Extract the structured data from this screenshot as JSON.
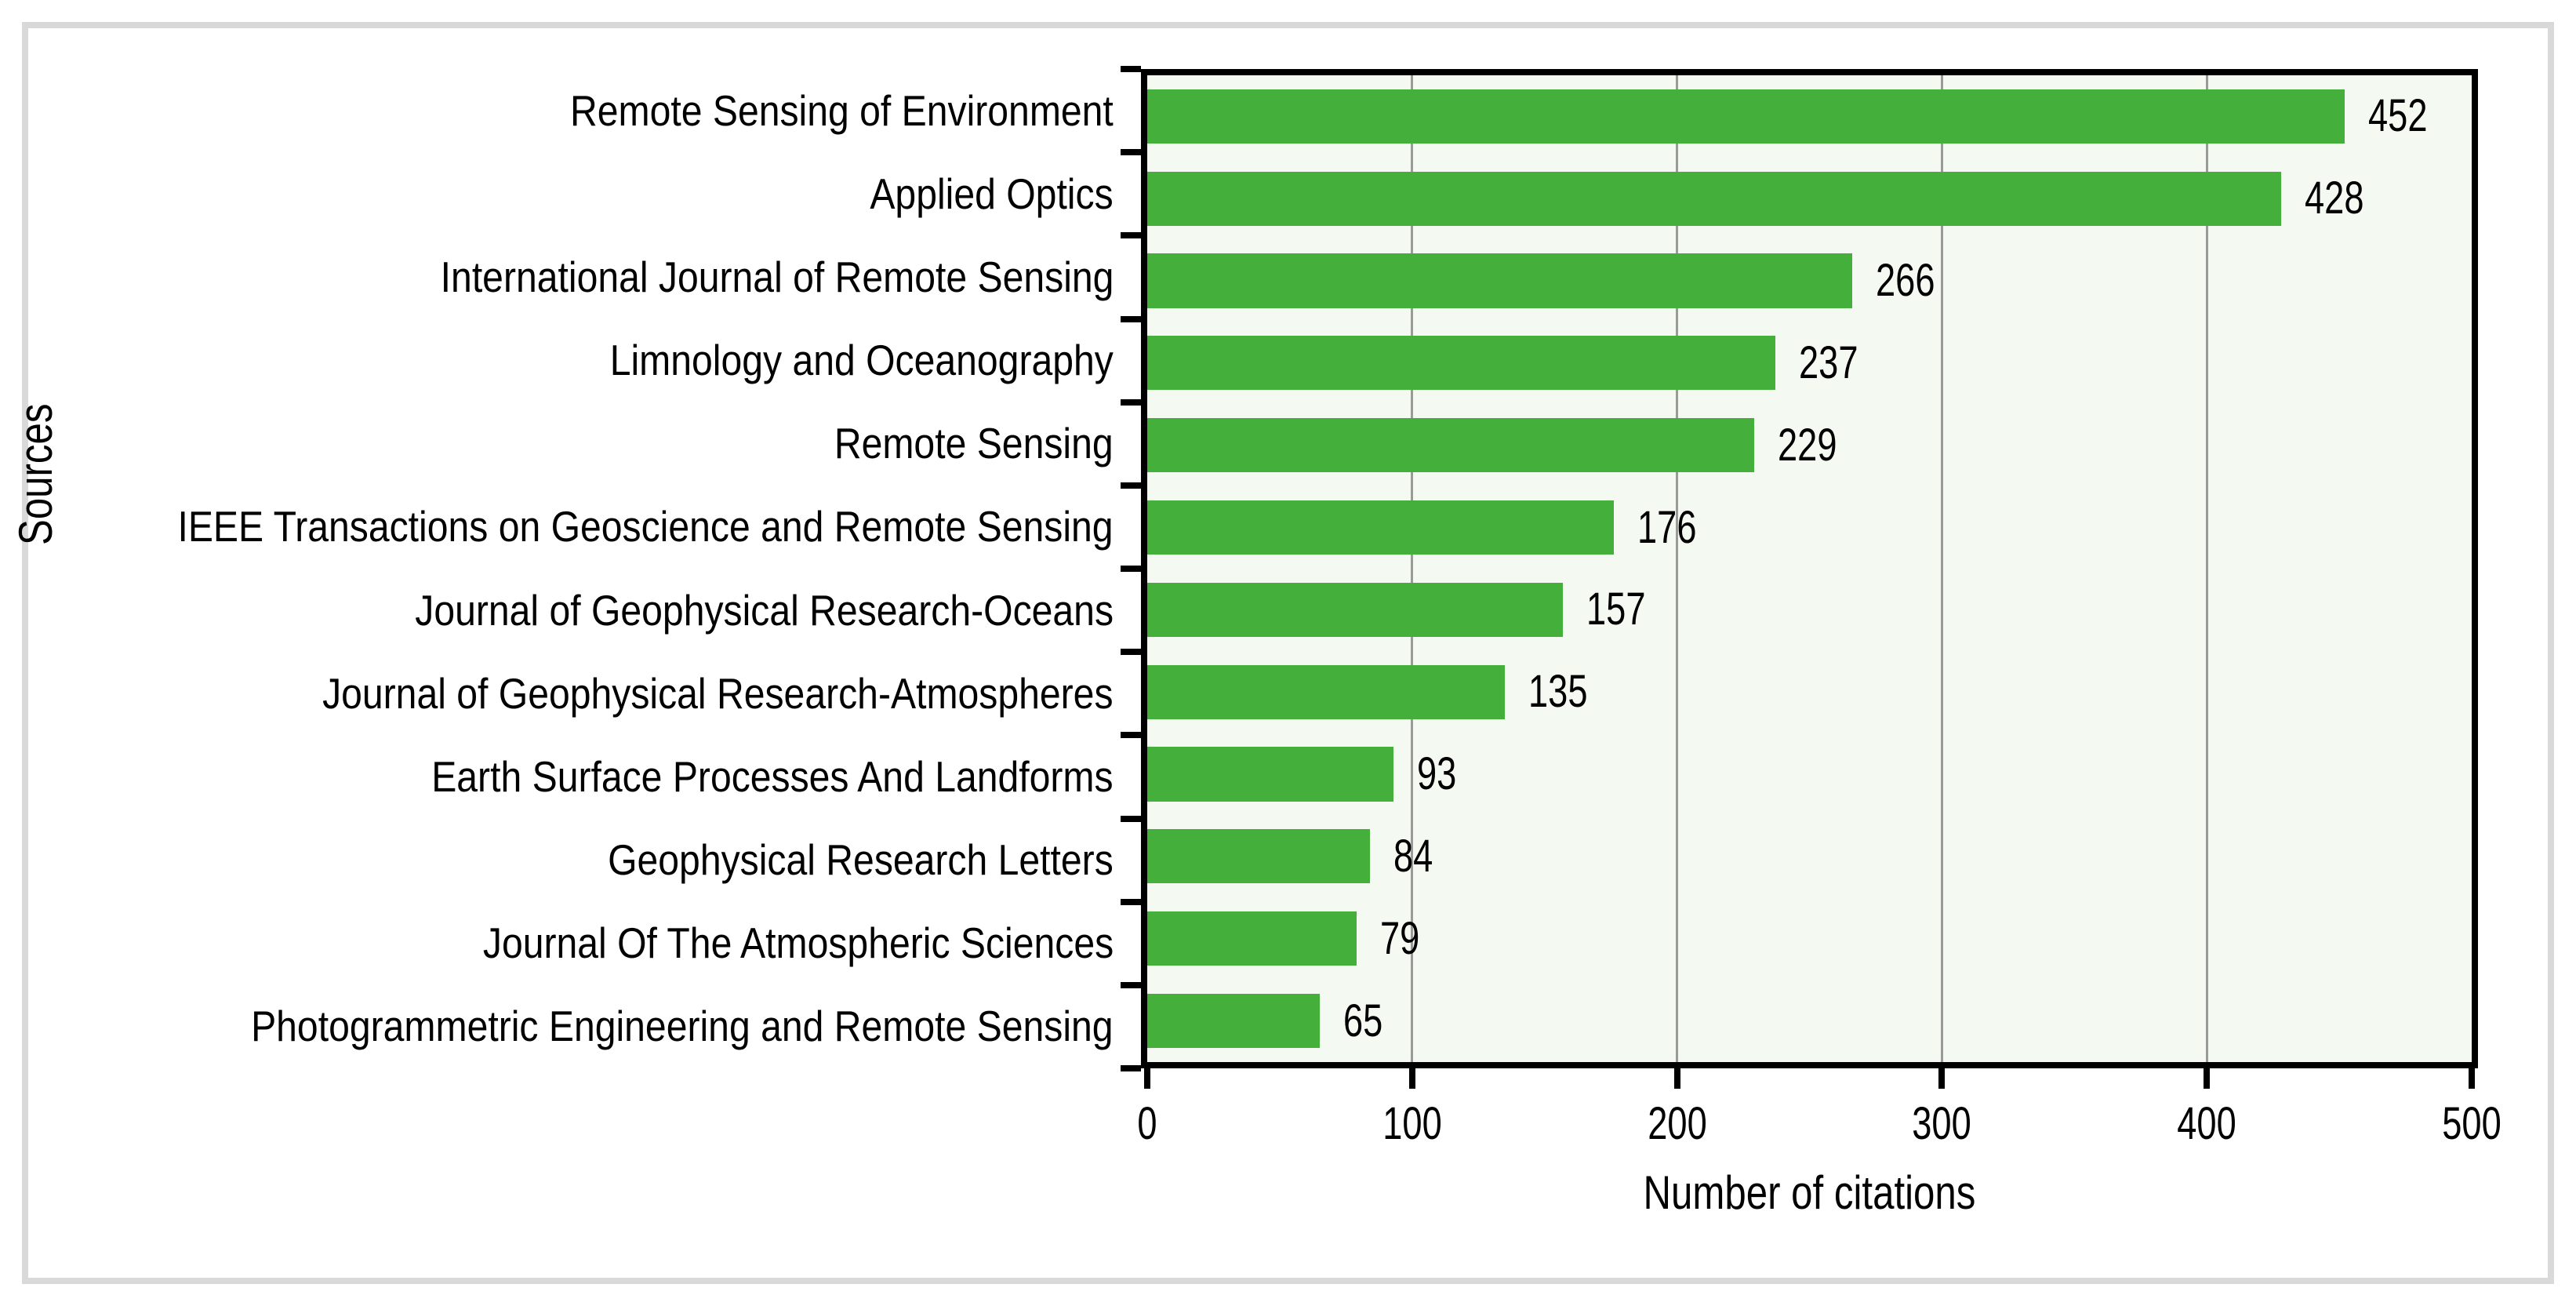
{
  "chart_data": {
    "type": "bar",
    "orientation": "horizontal",
    "xlabel": "Number of citations",
    "ylabel": "Sources",
    "categories": [
      "Remote Sensing of Environment",
      "Applied Optics",
      "International Journal of Remote Sensing",
      "Limnology and Oceanography",
      "Remote Sensing",
      "IEEE Transactions on Geoscience and Remote Sensing",
      "Journal of Geophysical Research-Oceans",
      "Journal of Geophysical Research-Atmospheres",
      "Earth Surface Processes And Landforms",
      "Geophysical Research Letters",
      "Journal Of The Atmospheric Sciences",
      "Photogrammetric Engineering and Remote Sensing"
    ],
    "values": [
      452,
      428,
      266,
      237,
      229,
      176,
      157,
      135,
      93,
      84,
      79,
      65
    ],
    "xlim": [
      0,
      500
    ],
    "xticks": [
      0,
      100,
      200,
      300,
      400,
      500
    ],
    "grid": "vertical-at-xticks",
    "legend": "none",
    "value_labels_shown": true,
    "colors": {
      "bar": "#45af3b",
      "plot_background": "#f4f9f1",
      "gridline": "#9a9a9a",
      "axis": "#000000",
      "figure_border": "#d9d9d9",
      "text": "#000000"
    }
  }
}
